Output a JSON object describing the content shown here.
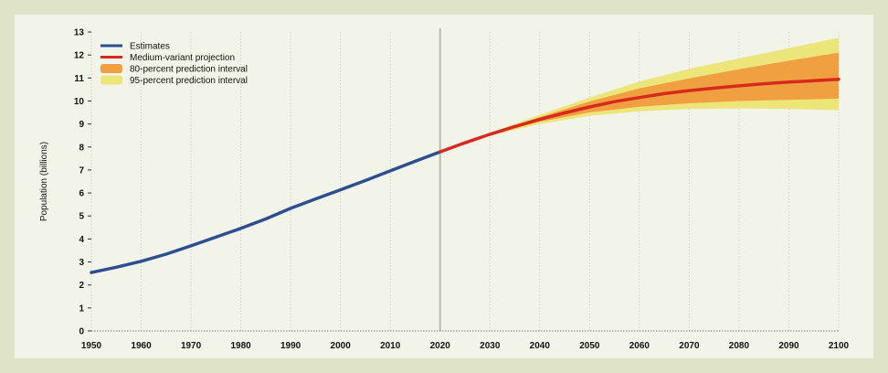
{
  "chart_data": {
    "type": "line",
    "title": "",
    "xlabel": "",
    "ylabel": "Population (billions)",
    "xlim": [
      1950,
      2100
    ],
    "ylim": [
      0,
      13
    ],
    "grid": true,
    "legend_position": "top-left",
    "x_ticks": [
      "1950",
      "1960",
      "1970",
      "1980",
      "1990",
      "2000",
      "2010",
      "2020",
      "2030",
      "2040",
      "2050",
      "2060",
      "2070",
      "2080",
      "2090",
      "2100"
    ],
    "y_ticks": [
      "0",
      "1",
      "2",
      "3",
      "4",
      "5",
      "6",
      "7",
      "8",
      "9",
      "10",
      "11",
      "12",
      "13"
    ],
    "divider_year": 2020,
    "series": [
      {
        "name": "Estimates",
        "color": "#2b4f8f",
        "x": [
          1950,
          1955,
          1960,
          1965,
          1970,
          1975,
          1980,
          1985,
          1990,
          1995,
          2000,
          2005,
          2010,
          2015,
          2020
        ],
        "y": [
          2.54,
          2.77,
          3.03,
          3.34,
          3.7,
          4.08,
          4.46,
          4.87,
          5.33,
          5.74,
          6.14,
          6.54,
          6.96,
          7.38,
          7.79
        ]
      },
      {
        "name": "Medium-variant projection",
        "color": "#d62a1e",
        "x": [
          2020,
          2025,
          2030,
          2035,
          2040,
          2045,
          2050,
          2055,
          2060,
          2065,
          2070,
          2075,
          2080,
          2085,
          2090,
          2095,
          2100
        ],
        "y": [
          7.79,
          8.18,
          8.55,
          8.89,
          9.2,
          9.48,
          9.74,
          9.97,
          10.15,
          10.32,
          10.45,
          10.56,
          10.66,
          10.75,
          10.82,
          10.88,
          10.94
        ]
      }
    ],
    "intervals": [
      {
        "name": "80-percent prediction interval",
        "color": "#f0a040",
        "x": [
          2020,
          2030,
          2040,
          2050,
          2060,
          2070,
          2080,
          2090,
          2100
        ],
        "lower": [
          7.79,
          8.52,
          9.1,
          9.5,
          9.75,
          9.9,
          10.0,
          10.05,
          10.1
        ],
        "upper": [
          7.79,
          8.58,
          9.3,
          9.98,
          10.55,
          10.98,
          11.38,
          11.75,
          12.1
        ]
      },
      {
        "name": "95-percent prediction interval",
        "color": "#ece67a",
        "x": [
          2020,
          2030,
          2040,
          2050,
          2060,
          2070,
          2080,
          2090,
          2100
        ],
        "lower": [
          7.79,
          8.5,
          9.0,
          9.35,
          9.55,
          9.65,
          9.68,
          9.65,
          9.6
        ],
        "upper": [
          7.79,
          8.62,
          9.4,
          10.15,
          10.85,
          11.4,
          11.85,
          12.3,
          12.75
        ]
      }
    ]
  }
}
